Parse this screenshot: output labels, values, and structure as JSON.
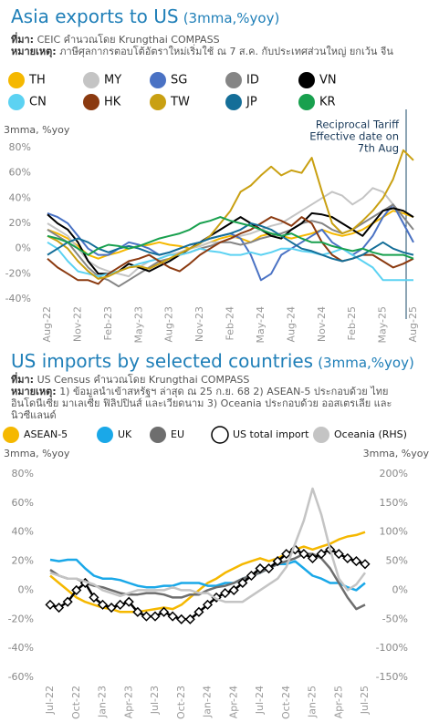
{
  "chart_data": [
    {
      "type": "line",
      "title": "Asia exports to US",
      "subtitle": "(3mma,%yoy)",
      "source_label": "ที่มา:",
      "source": "CEIC คำนวณโดย Krungthai COMPASS",
      "note_label": "หมายเหตุ:",
      "note": "ภาษีศุลกากรตอบโต้อัตราใหม่เริ่มใช้ ณ  7 ส.ค. กับประเทศส่วนใหญ่ ยกเว้น จีน",
      "y_label": "3mma,  %yoy",
      "annotation": [
        "Reciprocal Tariff",
        "Effective date on",
        "7th Aug"
      ],
      "categories": [
        "Aug-22",
        null,
        null,
        "Nov-22",
        null,
        null,
        "Feb-23",
        null,
        null,
        "May-23",
        null,
        null,
        "Aug-23",
        null,
        null,
        "Nov-23",
        null,
        null,
        "Feb-24",
        null,
        null,
        "May-24",
        null,
        null,
        "Aug-24",
        null,
        null,
        "Nov-24",
        null,
        null,
        "Feb-25",
        null,
        null,
        "May-25",
        null,
        null,
        "Aug-25"
      ],
      "ylim": [
        -40,
        80
      ],
      "yticks": [
        {
          "value": -40,
          "label": "-40%"
        },
        {
          "value": -20,
          "label": "-20%"
        },
        {
          "value": 0,
          "label": "0%"
        },
        {
          "value": 20,
          "label": "20%"
        },
        {
          "value": 40,
          "label": "40%"
        },
        {
          "value": 60,
          "label": "60%"
        },
        {
          "value": 80,
          "label": "80%"
        }
      ],
      "series": [
        {
          "name": "TH",
          "color": "#f5b800",
          "values": [
            15,
            12,
            8,
            2,
            -5,
            -8,
            -5,
            -3,
            0,
            2,
            3,
            5,
            3,
            2,
            0,
            2,
            5,
            8,
            10,
            8,
            5,
            10,
            12,
            10,
            8,
            10,
            12,
            15,
            12,
            10,
            12,
            15,
            20,
            25,
            30,
            28,
            25
          ]
        },
        {
          "name": "MY",
          "color": "#c4c4c4",
          "values": [
            20,
            15,
            10,
            0,
            -10,
            -15,
            -18,
            -20,
            -22,
            -15,
            -10,
            -8,
            -5,
            -3,
            0,
            2,
            5,
            5,
            8,
            10,
            12,
            15,
            18,
            20,
            25,
            30,
            35,
            40,
            45,
            42,
            35,
            40,
            48,
            45,
            35,
            20,
            5
          ]
        },
        {
          "name": "SG",
          "color": "#4a72c4",
          "values": [
            28,
            25,
            20,
            10,
            0,
            -5,
            -5,
            0,
            5,
            3,
            0,
            -5,
            -3,
            0,
            3,
            5,
            8,
            10,
            12,
            8,
            -5,
            -25,
            -20,
            -5,
            0,
            5,
            10,
            15,
            5,
            0,
            -5,
            0,
            10,
            25,
            35,
            20,
            5
          ]
        },
        {
          "name": "ID",
          "color": "#858585",
          "values": [
            15,
            10,
            5,
            -5,
            -15,
            -22,
            -25,
            -30,
            -25,
            -20,
            -15,
            -10,
            -8,
            -5,
            -3,
            0,
            2,
            5,
            5,
            3,
            5,
            8,
            10,
            12,
            15,
            20,
            22,
            20,
            15,
            12,
            15,
            20,
            25,
            30,
            35,
            25,
            15
          ]
        },
        {
          "name": "VN",
          "color": "#000000",
          "values": [
            27,
            20,
            15,
            5,
            -10,
            -20,
            -20,
            -18,
            -12,
            -15,
            -18,
            -14,
            -10,
            -5,
            0,
            5,
            10,
            15,
            20,
            25,
            20,
            15,
            10,
            8,
            15,
            20,
            28,
            27,
            25,
            20,
            15,
            10,
            20,
            30,
            32,
            30,
            25
          ]
        },
        {
          "name": "CN",
          "color": "#5cd2f2",
          "values": [
            5,
            0,
            -10,
            -18,
            -20,
            -22,
            -20,
            -18,
            -15,
            -12,
            -10,
            -8,
            -5,
            -5,
            -3,
            0,
            -2,
            -3,
            -5,
            -5,
            -3,
            -5,
            -3,
            0,
            0,
            -2,
            -3,
            -5,
            -3,
            0,
            -5,
            -10,
            -15,
            -25,
            -25,
            -25,
            -25
          ]
        },
        {
          "name": "HK",
          "color": "#8b3a10",
          "values": [
            -8,
            -15,
            -20,
            -25,
            -25,
            -28,
            -20,
            -15,
            -10,
            -8,
            -5,
            -10,
            -15,
            -18,
            -12,
            -5,
            0,
            5,
            8,
            12,
            15,
            20,
            25,
            22,
            18,
            25,
            20,
            5,
            -5,
            -10,
            -8,
            -5,
            -5,
            -10,
            -15,
            -12,
            -8
          ]
        },
        {
          "name": "TW",
          "color": "#c9a012",
          "values": [
            10,
            6,
            0,
            -10,
            -18,
            -24,
            -22,
            -18,
            -15,
            -14,
            -16,
            -12,
            -8,
            -4,
            0,
            4,
            10,
            20,
            30,
            45,
            50,
            58,
            65,
            58,
            62,
            60,
            72,
            45,
            20,
            12,
            15,
            22,
            30,
            40,
            55,
            78,
            70
          ]
        },
        {
          "name": "JP",
          "color": "#146e98",
          "values": [
            -5,
            0,
            5,
            8,
            5,
            0,
            -3,
            0,
            2,
            0,
            -3,
            -5,
            -3,
            0,
            3,
            5,
            8,
            10,
            12,
            15,
            20,
            18,
            15,
            10,
            5,
            0,
            -2,
            -5,
            -8,
            -10,
            -8,
            -5,
            0,
            5,
            0,
            -3,
            -5
          ]
        },
        {
          "name": "KR",
          "color": "#18a04e",
          "values": [
            10,
            8,
            5,
            0,
            -5,
            0,
            3,
            2,
            0,
            2,
            5,
            8,
            10,
            12,
            15,
            20,
            22,
            25,
            22,
            20,
            18,
            15,
            12,
            10,
            12,
            8,
            5,
            5,
            2,
            0,
            -2,
            0,
            -3,
            -5,
            -5,
            -5,
            -8
          ]
        }
      ]
    },
    {
      "type": "line",
      "title": "US imports by selected countries",
      "subtitle": "(3mma,%yoy)",
      "source_label": "ที่มา:",
      "source": "US Census คำนวณโดย Krungthai COMPASS",
      "note_label": "หมายเหตุ:",
      "note": "1) ข้อมูลนำเข้าสหรัฐฯ ล่าสุด ณ 25 ก.ย. 68 2) ASEAN-5 ประกอบด้วย ไทย อินโดนีเซีย มาเลเซีย ฟิลิปปินส์ และเวียดนาม 3) Oceania ประกอบด้วย ออสเตรเลีย และนิวซีแลนด์",
      "y_label": "3mma, %yoy",
      "y2_label": "3mma, %yoy",
      "categories": [
        "Jul-22",
        null,
        null,
        "Oct-22",
        null,
        null,
        "Jan-23",
        null,
        null,
        "Apr-23",
        null,
        null,
        "Jul-23",
        null,
        null,
        "Oct-23",
        null,
        null,
        "Jan-24",
        null,
        null,
        "Apr-24",
        null,
        null,
        "Jul-24",
        null,
        null,
        "Oct-24",
        null,
        null,
        "Jan-25",
        null,
        null,
        "Apr-25",
        null,
        null,
        "Jul-25"
      ],
      "ylim": [
        -60,
        80
      ],
      "yticks": [
        {
          "value": -60,
          "label": "-60%"
        },
        {
          "value": -40,
          "label": "-40%"
        },
        {
          "value": -20,
          "label": "-20%"
        },
        {
          "value": 0,
          "label": "0%"
        },
        {
          "value": 20,
          "label": "20%"
        },
        {
          "value": 40,
          "label": "40%"
        },
        {
          "value": 60,
          "label": "60%"
        },
        {
          "value": 80,
          "label": "80%"
        }
      ],
      "y2lim": [
        -150,
        200
      ],
      "y2ticks": [
        {
          "value": -150,
          "label": "-150%"
        },
        {
          "value": -100,
          "label": "-100%"
        },
        {
          "value": -50,
          "label": "-50%"
        },
        {
          "value": 0,
          "label": "0%"
        },
        {
          "value": 50,
          "label": "50%"
        },
        {
          "value": 100,
          "label": "100%"
        },
        {
          "value": 150,
          "label": "150%"
        },
        {
          "value": 200,
          "label": "200%"
        }
      ],
      "series": [
        {
          "name": "ASEAN-5",
          "color": "#f5b800",
          "values": [
            10,
            5,
            0,
            -5,
            -8,
            -10,
            -12,
            -13,
            -15,
            -15,
            -15,
            -14,
            -13,
            -12,
            -13,
            -10,
            -5,
            0,
            5,
            8,
            12,
            15,
            18,
            20,
            22,
            20,
            22,
            25,
            28,
            30,
            28,
            30,
            32,
            35,
            37,
            38,
            40
          ]
        },
        {
          "name": "UK",
          "color": "#1aa8e8",
          "values": [
            21,
            20,
            21,
            21,
            15,
            10,
            8,
            8,
            7,
            5,
            3,
            2,
            2,
            3,
            3,
            5,
            5,
            5,
            3,
            3,
            5,
            5,
            8,
            10,
            12,
            15,
            18,
            18,
            20,
            15,
            10,
            8,
            5,
            5,
            2,
            0,
            5
          ]
        },
        {
          "name": "EU",
          "color": "#6e6e6e",
          "values": [
            14,
            10,
            8,
            8,
            5,
            3,
            2,
            0,
            -2,
            -3,
            -3,
            -2,
            -2,
            -3,
            -5,
            -5,
            -3,
            -3,
            0,
            2,
            3,
            5,
            8,
            10,
            12,
            15,
            18,
            20,
            22,
            25,
            25,
            22,
            15,
            5,
            -5,
            -13,
            -10
          ]
        },
        {
          "name": "US total import",
          "color": "#000000",
          "marker": "diamond",
          "marker_fill": "#ffffff",
          "values": [
            -10,
            -12,
            -8,
            0,
            5,
            -5,
            -10,
            -12,
            -10,
            -8,
            -15,
            -18,
            -18,
            -15,
            -18,
            -20,
            -20,
            -15,
            -10,
            -5,
            -2,
            0,
            5,
            10,
            15,
            15,
            20,
            25,
            28,
            25,
            22,
            25,
            28,
            25,
            22,
            20,
            18
          ]
        },
        {
          "name": "Oceania (RHS)",
          "color": "#c4c4c4",
          "axis": "y2",
          "values": [
            30,
            25,
            20,
            20,
            15,
            10,
            0,
            -5,
            -10,
            -5,
            0,
            0,
            0,
            0,
            5,
            0,
            0,
            -5,
            -5,
            -15,
            -20,
            -20,
            -20,
            -10,
            0,
            10,
            20,
            40,
            80,
            120,
            175,
            130,
            70,
            20,
            0,
            10,
            30
          ]
        }
      ]
    }
  ]
}
